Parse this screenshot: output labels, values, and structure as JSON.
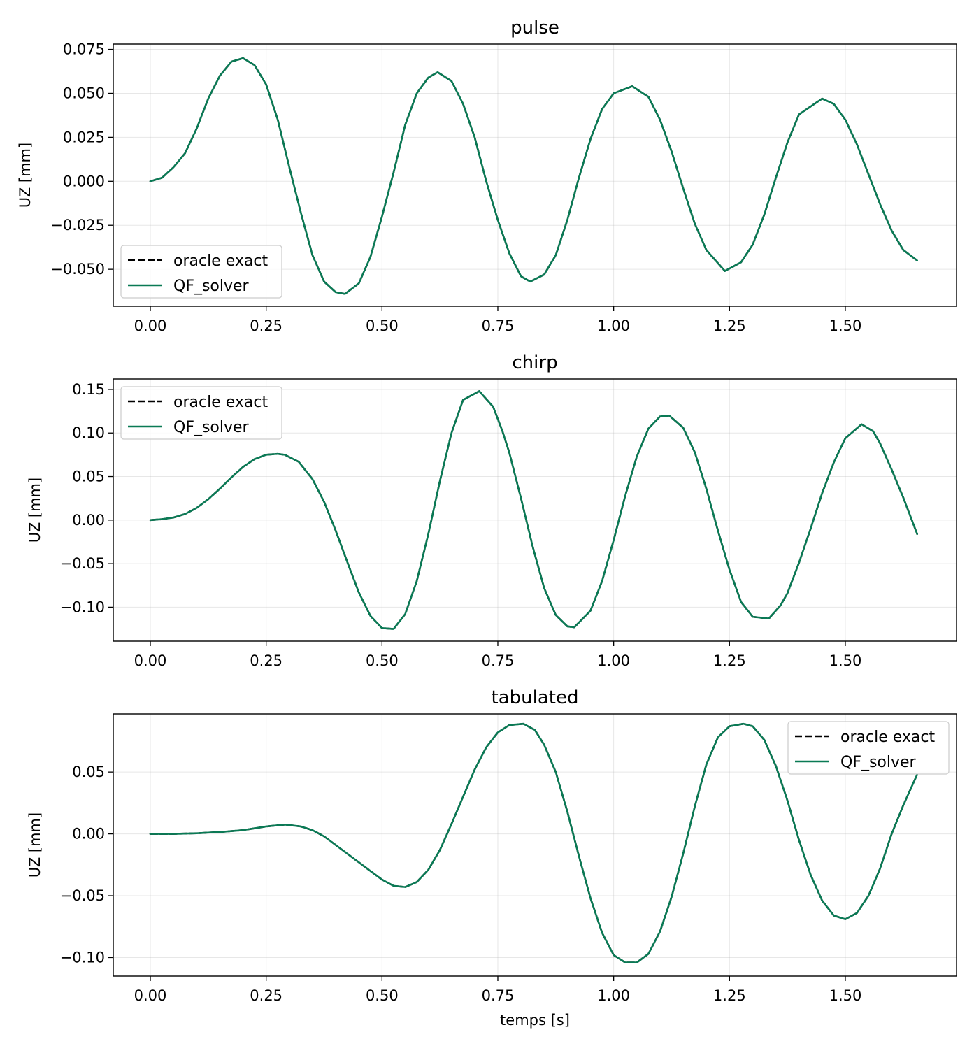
{
  "colors": {
    "oracle": "#000000",
    "solver": "#0a7a55",
    "grid": "#b0b0b0"
  },
  "chart_data": [
    {
      "type": "line",
      "title": "pulse",
      "ylabel": "UZ [mm]",
      "xlabel": "",
      "xlim": [
        -0.08,
        1.74
      ],
      "ylim": [
        -0.071,
        0.078
      ],
      "xticks": [
        0.0,
        0.25,
        0.5,
        0.75,
        1.0,
        1.25,
        1.5
      ],
      "xtick_labels": [
        "0.00",
        "0.25",
        "0.50",
        "0.75",
        "1.00",
        "1.25",
        "1.50"
      ],
      "yticks": [
        -0.05,
        -0.025,
        0.0,
        0.025,
        0.05,
        0.075
      ],
      "ytick_labels": [
        "−0.050",
        "−0.025",
        "0.000",
        "0.025",
        "0.050",
        "0.075"
      ],
      "grid": true,
      "legend_position": "lower-left",
      "x": [
        0.0,
        0.025,
        0.05,
        0.075,
        0.1,
        0.125,
        0.15,
        0.175,
        0.2,
        0.225,
        0.25,
        0.275,
        0.3,
        0.325,
        0.35,
        0.375,
        0.4,
        0.42,
        0.45,
        0.475,
        0.5,
        0.525,
        0.55,
        0.575,
        0.6,
        0.62,
        0.65,
        0.675,
        0.7,
        0.725,
        0.75,
        0.775,
        0.8,
        0.82,
        0.85,
        0.875,
        0.9,
        0.925,
        0.95,
        0.975,
        1.0,
        1.04,
        1.075,
        1.1,
        1.125,
        1.15,
        1.175,
        1.2,
        1.24,
        1.275,
        1.3,
        1.325,
        1.35,
        1.375,
        1.4,
        1.45,
        1.475,
        1.5,
        1.525,
        1.55,
        1.575,
        1.6,
        1.625,
        1.655
      ],
      "series": [
        {
          "name": "oracle exact",
          "style": "dashed",
          "y": [
            0.0,
            0.002,
            0.008,
            0.016,
            0.03,
            0.047,
            0.06,
            0.068,
            0.07,
            0.066,
            0.055,
            0.035,
            0.008,
            -0.018,
            -0.042,
            -0.057,
            -0.063,
            -0.064,
            -0.058,
            -0.043,
            -0.02,
            0.005,
            0.032,
            0.05,
            0.059,
            0.062,
            0.057,
            0.044,
            0.025,
            0.0,
            -0.022,
            -0.041,
            -0.054,
            -0.057,
            -0.053,
            -0.042,
            -0.022,
            0.002,
            0.024,
            0.041,
            0.05,
            0.054,
            0.048,
            0.035,
            0.017,
            -0.004,
            -0.024,
            -0.039,
            -0.051,
            -0.046,
            -0.036,
            -0.019,
            0.002,
            0.022,
            0.038,
            0.047,
            0.044,
            0.035,
            0.021,
            0.004,
            -0.013,
            -0.028,
            -0.039,
            -0.045
          ]
        },
        {
          "name": "QF_solver",
          "style": "solid",
          "y": [
            0.0,
            0.002,
            0.008,
            0.016,
            0.03,
            0.047,
            0.06,
            0.068,
            0.07,
            0.066,
            0.055,
            0.035,
            0.008,
            -0.018,
            -0.042,
            -0.057,
            -0.063,
            -0.064,
            -0.058,
            -0.043,
            -0.02,
            0.005,
            0.032,
            0.05,
            0.059,
            0.062,
            0.057,
            0.044,
            0.025,
            0.0,
            -0.022,
            -0.041,
            -0.054,
            -0.057,
            -0.053,
            -0.042,
            -0.022,
            0.002,
            0.024,
            0.041,
            0.05,
            0.054,
            0.048,
            0.035,
            0.017,
            -0.004,
            -0.024,
            -0.039,
            -0.051,
            -0.046,
            -0.036,
            -0.019,
            0.002,
            0.022,
            0.038,
            0.047,
            0.044,
            0.035,
            0.021,
            0.004,
            -0.013,
            -0.028,
            -0.039,
            -0.045
          ]
        }
      ]
    },
    {
      "type": "line",
      "title": "chirp",
      "ylabel": "UZ [mm]",
      "xlabel": "",
      "xlim": [
        -0.08,
        1.74
      ],
      "ylim": [
        -0.139,
        0.162
      ],
      "xticks": [
        0.0,
        0.25,
        0.5,
        0.75,
        1.0,
        1.25,
        1.5
      ],
      "xtick_labels": [
        "0.00",
        "0.25",
        "0.50",
        "0.75",
        "1.00",
        "1.25",
        "1.50"
      ],
      "yticks": [
        -0.1,
        -0.05,
        0.0,
        0.05,
        0.1,
        0.15
      ],
      "ytick_labels": [
        "−0.10",
        "−0.05",
        "0.00",
        "0.05",
        "0.10",
        "0.15"
      ],
      "grid": true,
      "legend_position": "upper-left",
      "x": [
        0.0,
        0.025,
        0.05,
        0.075,
        0.1,
        0.125,
        0.15,
        0.175,
        0.2,
        0.225,
        0.25,
        0.275,
        0.29,
        0.32,
        0.35,
        0.375,
        0.4,
        0.425,
        0.45,
        0.475,
        0.5,
        0.525,
        0.55,
        0.575,
        0.6,
        0.625,
        0.65,
        0.675,
        0.71,
        0.74,
        0.76,
        0.775,
        0.8,
        0.825,
        0.85,
        0.875,
        0.9,
        0.915,
        0.95,
        0.975,
        1.0,
        1.025,
        1.05,
        1.075,
        1.1,
        1.12,
        1.15,
        1.175,
        1.2,
        1.225,
        1.25,
        1.275,
        1.3,
        1.335,
        1.36,
        1.375,
        1.4,
        1.425,
        1.45,
        1.475,
        1.5,
        1.535,
        1.56,
        1.575,
        1.6,
        1.625,
        1.655
      ],
      "series": [
        {
          "name": "oracle exact",
          "style": "dashed",
          "y": [
            0.0,
            0.001,
            0.003,
            0.007,
            0.014,
            0.024,
            0.036,
            0.049,
            0.061,
            0.07,
            0.075,
            0.076,
            0.075,
            0.067,
            0.047,
            0.021,
            -0.012,
            -0.048,
            -0.083,
            -0.11,
            -0.124,
            -0.125,
            -0.108,
            -0.07,
            -0.016,
            0.045,
            0.1,
            0.138,
            0.148,
            0.13,
            0.102,
            0.077,
            0.025,
            -0.03,
            -0.078,
            -0.109,
            -0.122,
            -0.123,
            -0.104,
            -0.07,
            -0.023,
            0.028,
            0.073,
            0.105,
            0.119,
            0.12,
            0.106,
            0.078,
            0.036,
            -0.012,
            -0.057,
            -0.094,
            -0.111,
            -0.113,
            -0.098,
            -0.084,
            -0.049,
            -0.01,
            0.031,
            0.066,
            0.094,
            0.11,
            0.102,
            0.088,
            0.058,
            0.026,
            -0.016
          ]
        },
        {
          "name": "QF_solver",
          "style": "solid",
          "y": [
            0.0,
            0.001,
            0.003,
            0.007,
            0.014,
            0.024,
            0.036,
            0.049,
            0.061,
            0.07,
            0.075,
            0.076,
            0.075,
            0.067,
            0.047,
            0.021,
            -0.012,
            -0.048,
            -0.083,
            -0.11,
            -0.124,
            -0.125,
            -0.108,
            -0.07,
            -0.016,
            0.045,
            0.1,
            0.138,
            0.148,
            0.13,
            0.102,
            0.077,
            0.025,
            -0.03,
            -0.078,
            -0.109,
            -0.122,
            -0.123,
            -0.104,
            -0.07,
            -0.023,
            0.028,
            0.073,
            0.105,
            0.119,
            0.12,
            0.106,
            0.078,
            0.036,
            -0.012,
            -0.057,
            -0.094,
            -0.111,
            -0.113,
            -0.098,
            -0.084,
            -0.049,
            -0.01,
            0.031,
            0.066,
            0.094,
            0.11,
            0.102,
            0.088,
            0.058,
            0.026,
            -0.016
          ]
        }
      ]
    },
    {
      "type": "line",
      "title": "tabulated",
      "ylabel": "UZ [mm]",
      "xlabel": "temps [s]",
      "xlim": [
        -0.08,
        1.74
      ],
      "ylim": [
        -0.115,
        0.097
      ],
      "xticks": [
        0.0,
        0.25,
        0.5,
        0.75,
        1.0,
        1.25,
        1.5
      ],
      "xtick_labels": [
        "0.00",
        "0.25",
        "0.50",
        "0.75",
        "1.00",
        "1.25",
        "1.50"
      ],
      "yticks": [
        -0.1,
        -0.05,
        0.0,
        0.05
      ],
      "ytick_labels": [
        "−0.10",
        "−0.05",
        "0.00",
        "0.05"
      ],
      "grid": true,
      "legend_position": "upper-right",
      "x": [
        0.0,
        0.05,
        0.1,
        0.15,
        0.2,
        0.25,
        0.29,
        0.325,
        0.35,
        0.375,
        0.4,
        0.425,
        0.45,
        0.475,
        0.5,
        0.525,
        0.55,
        0.575,
        0.6,
        0.625,
        0.65,
        0.675,
        0.7,
        0.725,
        0.75,
        0.775,
        0.805,
        0.83,
        0.85,
        0.875,
        0.9,
        0.925,
        0.95,
        0.975,
        1.0,
        1.025,
        1.05,
        1.075,
        1.1,
        1.125,
        1.15,
        1.175,
        1.2,
        1.225,
        1.25,
        1.28,
        1.3,
        1.325,
        1.35,
        1.375,
        1.4,
        1.425,
        1.45,
        1.475,
        1.5,
        1.525,
        1.55,
        1.575,
        1.6,
        1.625,
        1.655
      ],
      "series": [
        {
          "name": "oracle exact",
          "style": "dashed",
          "y": [
            0.0,
            0.0,
            0.0005,
            0.0015,
            0.003,
            0.006,
            0.0075,
            0.006,
            0.003,
            -0.002,
            -0.009,
            -0.016,
            -0.023,
            -0.03,
            -0.037,
            -0.042,
            -0.043,
            -0.039,
            -0.029,
            -0.013,
            0.008,
            0.03,
            0.052,
            0.07,
            0.082,
            0.088,
            0.089,
            0.084,
            0.072,
            0.05,
            0.018,
            -0.018,
            -0.052,
            -0.08,
            -0.098,
            -0.104,
            -0.104,
            -0.097,
            -0.079,
            -0.051,
            -0.016,
            0.022,
            0.056,
            0.078,
            0.087,
            0.089,
            0.087,
            0.076,
            0.055,
            0.027,
            -0.005,
            -0.033,
            -0.054,
            -0.066,
            -0.069,
            -0.064,
            -0.05,
            -0.028,
            0.0,
            0.023,
            0.048
          ]
        },
        {
          "name": "QF_solver",
          "style": "solid",
          "y": [
            0.0,
            0.0,
            0.0005,
            0.0015,
            0.003,
            0.006,
            0.0075,
            0.006,
            0.003,
            -0.002,
            -0.009,
            -0.016,
            -0.023,
            -0.03,
            -0.037,
            -0.042,
            -0.043,
            -0.039,
            -0.029,
            -0.013,
            0.008,
            0.03,
            0.052,
            0.07,
            0.082,
            0.088,
            0.089,
            0.084,
            0.072,
            0.05,
            0.018,
            -0.018,
            -0.052,
            -0.08,
            -0.098,
            -0.104,
            -0.104,
            -0.097,
            -0.079,
            -0.051,
            -0.016,
            0.022,
            0.056,
            0.078,
            0.087,
            0.089,
            0.087,
            0.076,
            0.055,
            0.027,
            -0.005,
            -0.033,
            -0.054,
            -0.066,
            -0.069,
            -0.064,
            -0.05,
            -0.028,
            0.0,
            0.023,
            0.048
          ]
        }
      ]
    }
  ]
}
